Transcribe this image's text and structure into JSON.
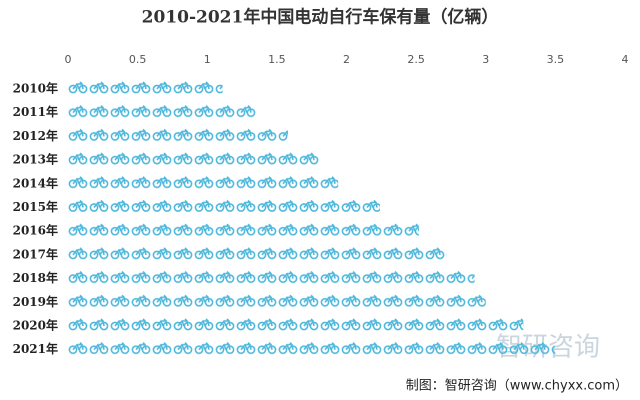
{
  "chart_data": {
    "type": "pictograph_bar",
    "title": "2010-2021年中国电动自行车保有量（亿辆）",
    "categories": [
      "2010年",
      "2011年",
      "2012年",
      "2013年",
      "2014年",
      "2015年",
      "2016年",
      "2017年",
      "2018年",
      "2019年",
      "2020年",
      "2021年"
    ],
    "values": [
      1.11,
      1.35,
      1.58,
      1.81,
      1.94,
      2.24,
      2.52,
      2.72,
      2.92,
      3.0,
      3.27,
      3.5
    ],
    "color": "#4fb8dc",
    "xlim": [
      0,
      4
    ],
    "xticks": [
      0,
      0.5,
      1,
      1.5,
      2,
      2.5,
      3,
      3.5,
      4
    ],
    "source": "制图：智研咨询（www.chyxx.com）",
    "watermark": "智研咨询"
  }
}
